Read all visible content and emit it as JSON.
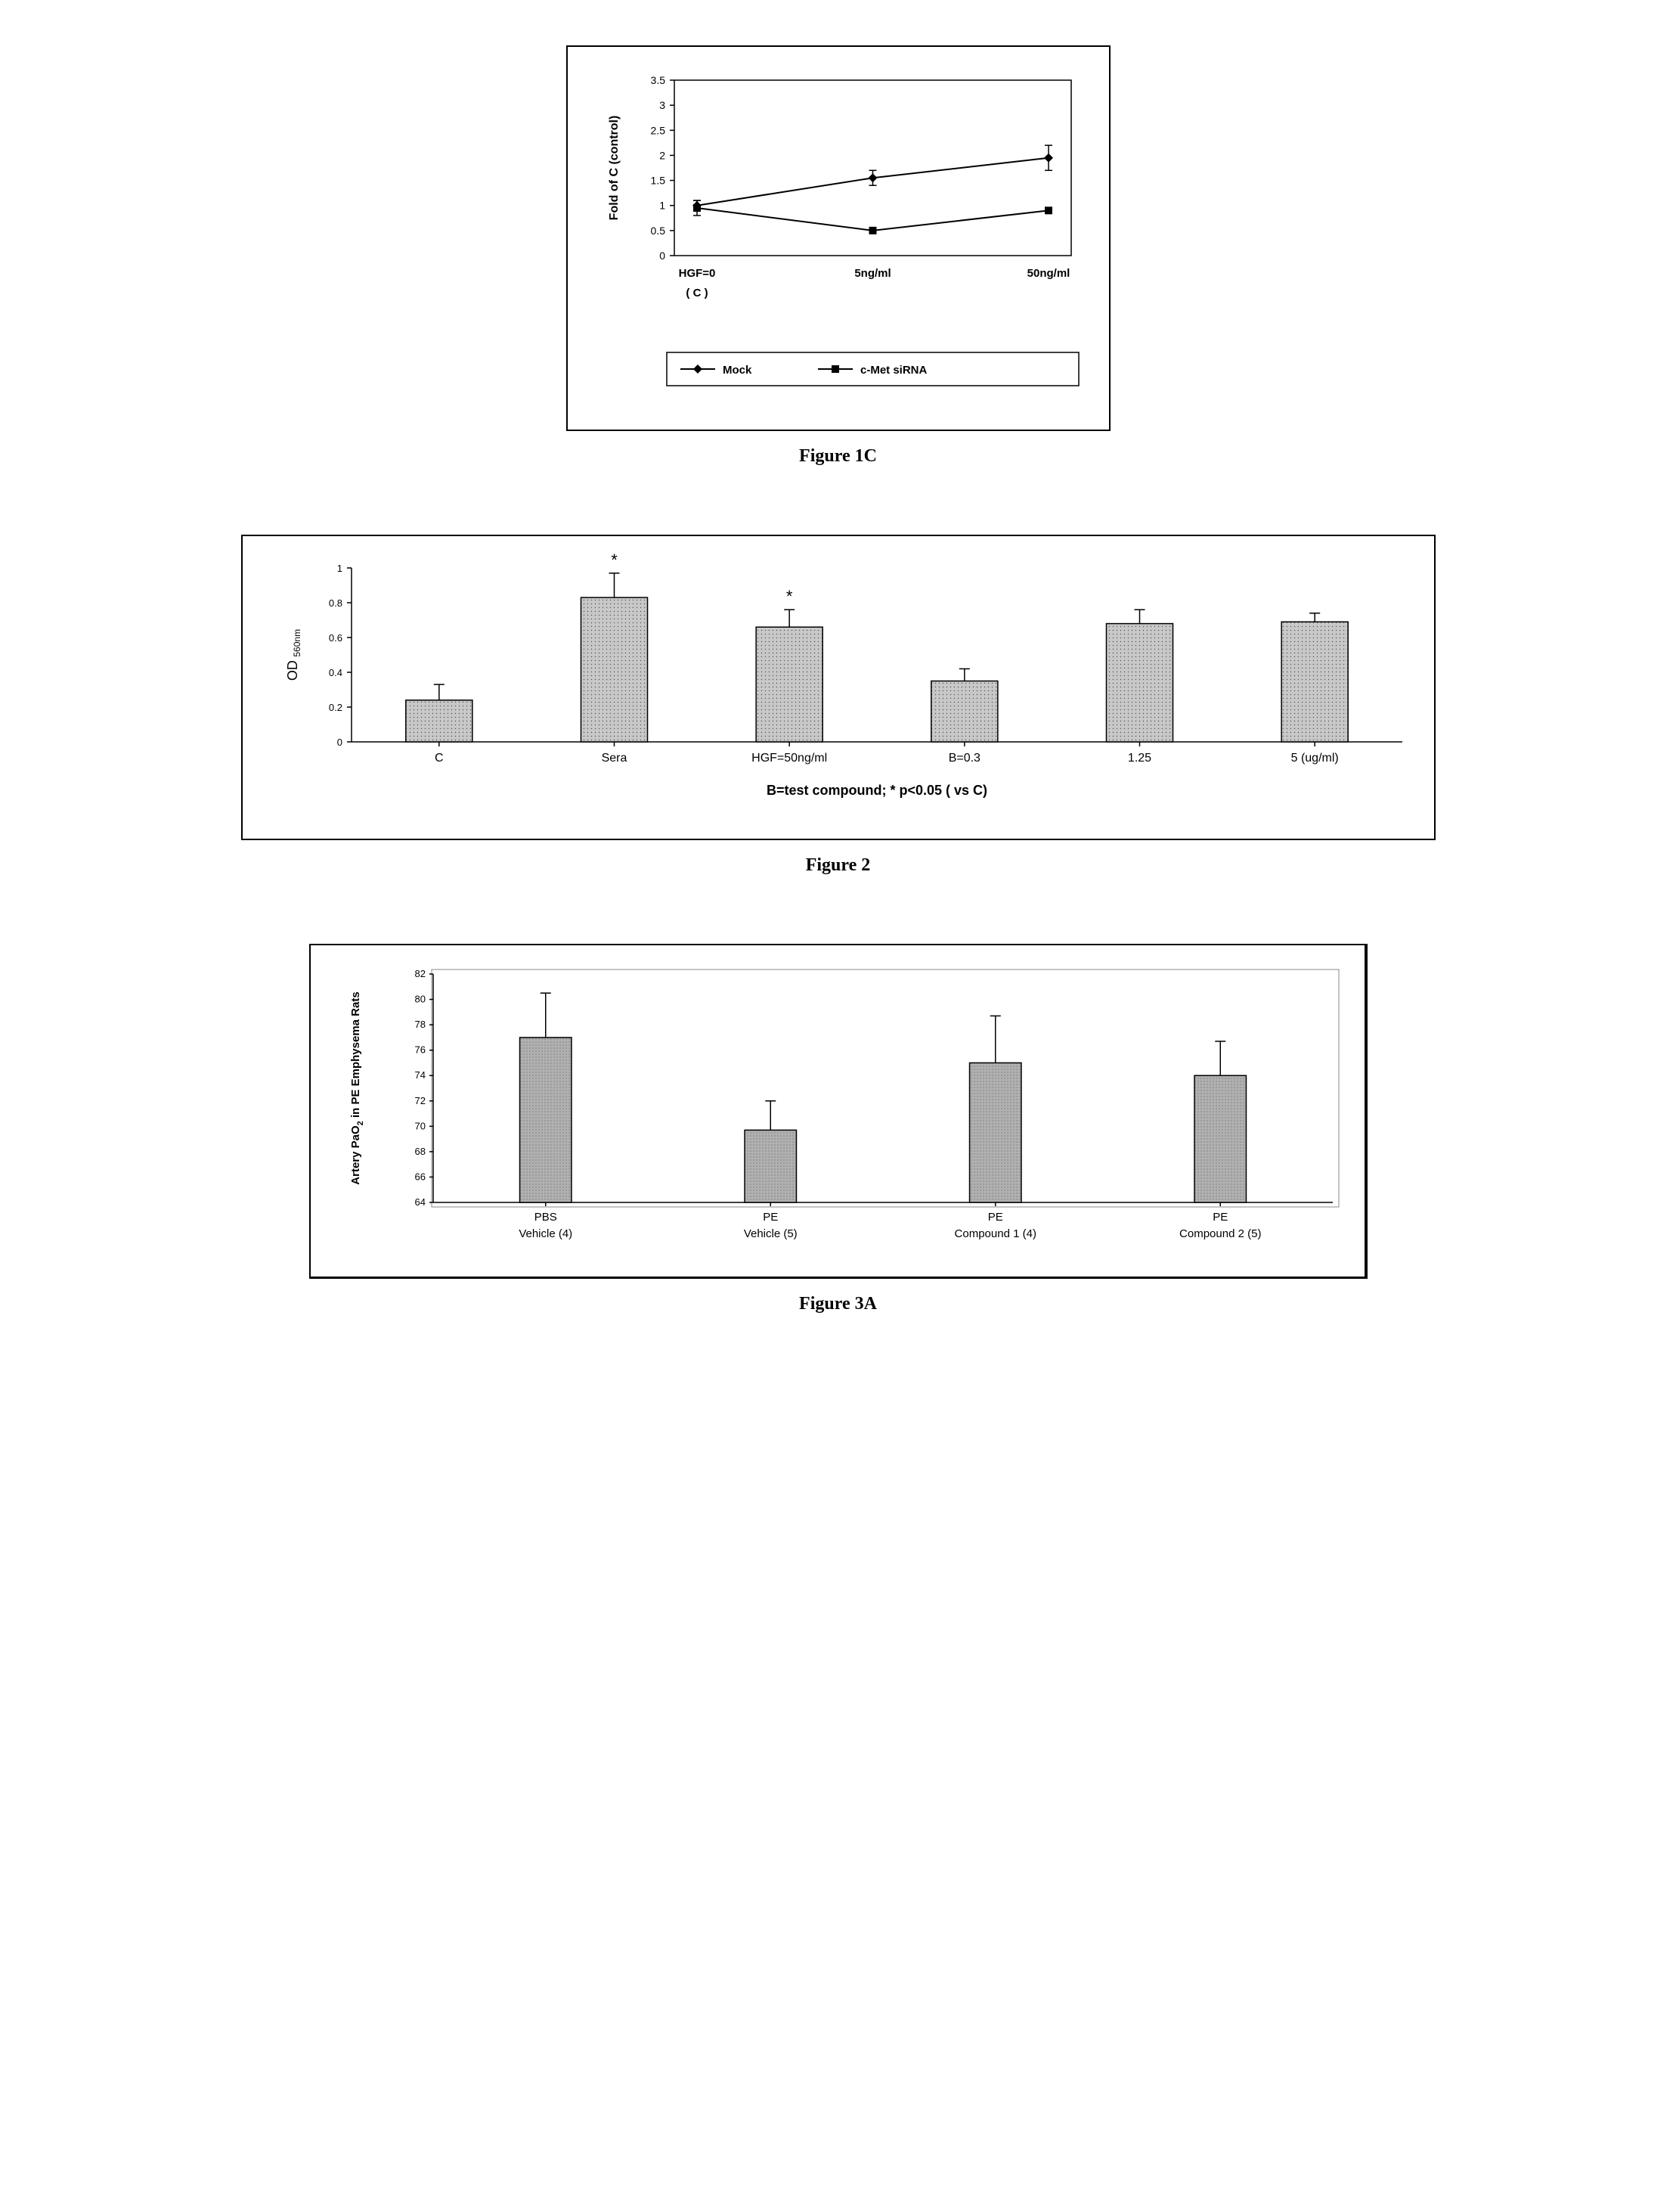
{
  "figure1C": {
    "caption": "Figure 1C",
    "type": "line",
    "ylabel": "Fold of C (control)",
    "ylim": [
      0,
      3.5
    ],
    "ytick_step": 0.5,
    "yticks": [
      "0",
      "0.5",
      "1",
      "1.5",
      "2",
      "2.5",
      "3",
      "3.5"
    ],
    "categories": [
      "HGF=0",
      "5ng/ml",
      "50ng/ml"
    ],
    "sub_label": "( C )",
    "series": [
      {
        "name": "Mock",
        "marker": "diamond",
        "values": [
          1.0,
          1.55,
          1.95
        ],
        "err": [
          0.1,
          0.15,
          0.25
        ]
      },
      {
        "name": "c-Met siRNA",
        "marker": "square",
        "values": [
          0.95,
          0.5,
          0.9
        ],
        "err": [
          0.15,
          0.05,
          0.05
        ]
      }
    ],
    "line_color": "#000000",
    "marker_fill": "#000000",
    "background": "#ffffff",
    "axis_font_size": 14,
    "label_font_size": 16,
    "legend_font_size": 15
  },
  "figure2": {
    "caption": "Figure 2",
    "type": "bar",
    "ylabel_main": "OD",
    "ylabel_sub": "560nm",
    "xlabel_note": "B=test compound;  * p<0.05 ( vs  C)",
    "ylim": [
      0,
      1
    ],
    "ytick_step": 0.2,
    "yticks": [
      "0",
      "0.2",
      "0.4",
      "0.6",
      "0.8",
      "1"
    ],
    "categories": [
      "C",
      "Sera",
      "HGF=50ng/ml",
      "B=0.3",
      "1.25",
      "5 (ug/ml)"
    ],
    "values": [
      0.24,
      0.83,
      0.66,
      0.35,
      0.68,
      0.69
    ],
    "err": [
      0.09,
      0.14,
      0.1,
      0.07,
      0.08,
      0.05
    ],
    "stars": [
      false,
      true,
      true,
      false,
      false,
      false
    ],
    "bar_fill": "#c8c8c8",
    "bar_stroke": "#000000",
    "bar_width": 0.38,
    "background": "#ffffff",
    "axis_font_size": 13,
    "label_font_size": 16,
    "note_font_size": 18
  },
  "figure3A": {
    "caption": "Figure 3A",
    "type": "bar",
    "ylabel": "Artery PaO₂ in PE Emphysema Rats",
    "ylabel_plain": "Artery PaO",
    "ylabel_sub2": "2",
    "ylabel_tail": " in PE Emphysema Rats",
    "ylim": [
      64,
      82
    ],
    "ytick_step": 2,
    "yticks": [
      "64",
      "66",
      "68",
      "70",
      "72",
      "74",
      "76",
      "78",
      "80",
      "82"
    ],
    "categories_top": [
      "PBS",
      "PE",
      "PE",
      "PE"
    ],
    "categories_bottom": [
      "Vehicle (4)",
      "Vehicle (5)",
      "Compound 1 (4)",
      "Compound 2 (5)"
    ],
    "values": [
      77.0,
      69.7,
      75.0,
      74.0
    ],
    "err": [
      3.5,
      2.3,
      3.7,
      2.7
    ],
    "bar_fill": "#b0b0b0",
    "bar_stroke": "#000000",
    "bar_width": 0.23,
    "background": "#ffffff",
    "axis_font_size": 13,
    "label_font_size": 15
  }
}
